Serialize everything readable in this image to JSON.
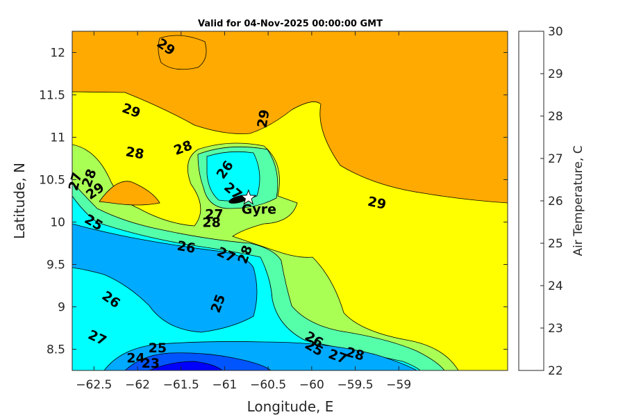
{
  "chart_data": {
    "type": "contour",
    "title": "Valid for 04-Nov-2025 00:00:00 GMT",
    "xlabel": "Longitude, E",
    "ylabel": "Latitude, N",
    "xlim": [
      -62.75,
      -57.75
    ],
    "ylim": [
      8.25,
      12.25
    ],
    "xticks": [
      -62.5,
      -62,
      -61.5,
      -61,
      -60.5,
      -60,
      -59.5,
      -59
    ],
    "yticks": [
      8.5,
      9,
      9.5,
      10,
      10.5,
      11,
      11.5,
      12
    ],
    "colorbar": {
      "label": "Air Temperature, C",
      "levels": [
        22,
        23,
        24,
        25,
        26,
        27,
        28,
        29,
        30
      ],
      "colors": [
        "#0000ff",
        "#0055ff",
        "#00aaff",
        "#00ffff",
        "#55ffaa",
        "#aaff55",
        "#ffff00",
        "#ffaa00",
        "#ff5500"
      ]
    },
    "contour_labels": [
      {
        "text": "29",
        "x": -61.67,
        "y": 12.07,
        "rot": 35
      },
      {
        "text": "29",
        "x": -62.07,
        "y": 11.32,
        "rot": 20
      },
      {
        "text": "29",
        "x": -60.56,
        "y": 11.22,
        "rot": -80
      },
      {
        "text": "29",
        "x": -59.25,
        "y": 10.23,
        "rot": 12
      },
      {
        "text": "29",
        "x": -62.49,
        "y": 10.37,
        "rot": -35
      },
      {
        "text": "28",
        "x": -62.03,
        "y": 10.82,
        "rot": 10
      },
      {
        "text": "28",
        "x": -61.48,
        "y": 10.88,
        "rot": -20
      },
      {
        "text": "28",
        "x": -62.56,
        "y": 10.52,
        "rot": -70
      },
      {
        "text": "28",
        "x": -61.15,
        "y": 10.0,
        "rot": 0
      },
      {
        "text": "28",
        "x": -60.77,
        "y": 9.62,
        "rot": -70
      },
      {
        "text": "28",
        "x": -59.5,
        "y": 8.45,
        "rot": 15
      },
      {
        "text": "27",
        "x": -62.72,
        "y": 10.48,
        "rot": -75
      },
      {
        "text": "27",
        "x": -61.12,
        "y": 10.1,
        "rot": 0
      },
      {
        "text": "27",
        "x": -60.98,
        "y": 9.62,
        "rot": 25
      },
      {
        "text": "27",
        "x": -60.9,
        "y": 10.37,
        "rot": 40
      },
      {
        "text": "27",
        "x": -62.46,
        "y": 8.64,
        "rot": 25
      },
      {
        "text": "27",
        "x": -59.7,
        "y": 8.42,
        "rot": 20
      },
      {
        "text": "26",
        "x": -61.0,
        "y": 10.62,
        "rot": -55
      },
      {
        "text": "26",
        "x": -61.44,
        "y": 9.71,
        "rot": 10
      },
      {
        "text": "26",
        "x": -62.3,
        "y": 9.09,
        "rot": 35
      },
      {
        "text": "26",
        "x": -59.97,
        "y": 8.62,
        "rot": 30
      },
      {
        "text": "25",
        "x": -62.5,
        "y": 10.0,
        "rot": 30
      },
      {
        "text": "25",
        "x": -61.08,
        "y": 9.04,
        "rot": -70
      },
      {
        "text": "25",
        "x": -61.77,
        "y": 8.52,
        "rot": 0
      },
      {
        "text": "25",
        "x": -59.97,
        "y": 8.52,
        "rot": 30
      },
      {
        "text": "24",
        "x": -62.02,
        "y": 8.4,
        "rot": 0
      },
      {
        "text": "23",
        "x": -61.85,
        "y": 8.34,
        "rot": 0
      }
    ],
    "marker": {
      "label": "Gyre",
      "x": -60.79,
      "y": 10.27
    }
  }
}
